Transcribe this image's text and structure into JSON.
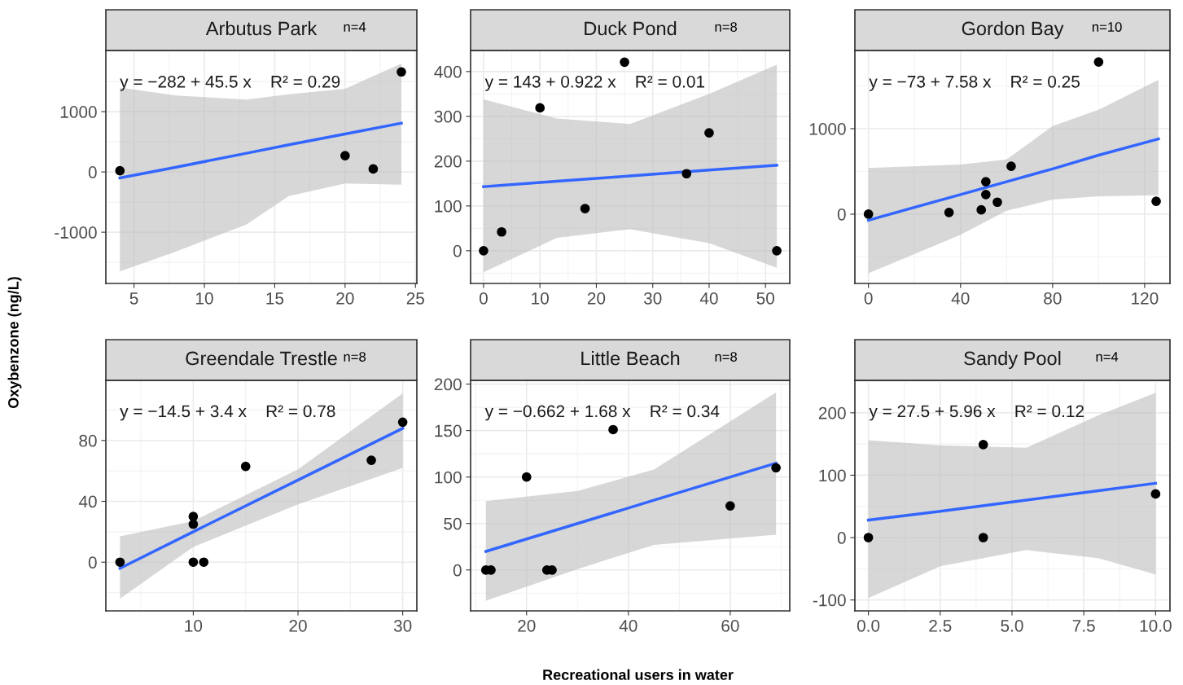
{
  "chart_data": [
    {
      "type": "scatter",
      "title": "Arbutus Park",
      "ylabel": "Oxybenzone (ng/L)",
      "annotations": [
        "n=4",
        "y = −282 + 45.5 x    R² = 0.29"
      ],
      "xlim": [
        3,
        25.1
      ],
      "ylim": [
        -1850,
        2015
      ],
      "xticks": [
        5,
        10,
        15,
        20,
        25
      ],
      "yticks": [
        -1000,
        0,
        1000
      ],
      "grid": true,
      "series": [
        {
          "type": "scatter",
          "marker": "circle",
          "color": "#000000",
          "x": [
            4,
            20,
            22,
            24
          ],
          "values": [
            20,
            270,
            50,
            1660
          ]
        },
        {
          "type": "line",
          "color": "#3366ff",
          "x": [
            4,
            8,
            13,
            16,
            20,
            24
          ],
          "values": [
            -100,
            80,
            310,
            450,
            630,
            810
          ],
          "lower": [
            -1650,
            -1320,
            -870,
            -400,
            -190,
            -210
          ],
          "upper": [
            1400,
            1270,
            1200,
            1290,
            1380,
            1800
          ]
        }
      ]
    },
    {
      "type": "scatter",
      "title": "Duck Pond",
      "annotations": [
        "n=8",
        "y = 143 + 0.922 x    R² = 0.01"
      ],
      "xlim": [
        -2.3,
        54.3
      ],
      "ylim": [
        -73,
        447
      ],
      "xticks": [
        0,
        10,
        20,
        30,
        40,
        50
      ],
      "yticks": [
        0,
        100,
        200,
        300,
        400
      ],
      "grid": true,
      "series": [
        {
          "type": "scatter",
          "marker": "circle",
          "color": "#000000",
          "x": [
            0,
            3.2,
            10,
            18,
            25,
            36,
            40,
            52
          ],
          "values": [
            0,
            42,
            319,
            94,
            421,
            172,
            263,
            0
          ]
        },
        {
          "type": "line",
          "color": "#3366ff",
          "x": [
            0,
            13,
            26,
            40,
            52
          ],
          "values": [
            143,
            155,
            167,
            180,
            191
          ],
          "lower": [
            -48,
            29,
            48,
            17,
            -38
          ],
          "upper": [
            338,
            295,
            283,
            350,
            415
          ]
        }
      ]
    },
    {
      "type": "scatter",
      "title": "Gordon Bay",
      "annotations": [
        "n=10",
        "y = −73 + 7.58 x    R² = 0.25"
      ],
      "xlim": [
        -5.9,
        131
      ],
      "ylim": [
        -810,
        1914
      ],
      "xticks": [
        0,
        40,
        80,
        120
      ],
      "yticks": [
        0,
        1000
      ],
      "grid": true,
      "series": [
        {
          "type": "scatter",
          "marker": "circle",
          "color": "#000000",
          "x": [
            0,
            35,
            49,
            51,
            51,
            56,
            62,
            100,
            125
          ],
          "values": [
            0,
            20,
            50,
            230,
            380,
            140,
            560,
            1780,
            150
          ]
        },
        {
          "type": "line",
          "color": "#3366ff",
          "x": [
            0,
            40,
            60,
            80,
            100,
            126
          ],
          "values": [
            -70,
            230,
            380,
            530,
            690,
            880
          ],
          "lower": [
            -690,
            -240,
            40,
            170,
            210,
            220
          ],
          "upper": [
            540,
            580,
            640,
            1030,
            1220,
            1570
          ]
        }
      ]
    },
    {
      "type": "scatter",
      "title": "Greendale Trestle",
      "annotations": [
        "n=8",
        "y = −14.5 + 3.4 x    R² = 0.78"
      ],
      "xlim": [
        1.65,
        31.35
      ],
      "ylim": [
        -32,
        119.5
      ],
      "xticks": [
        10,
        20,
        30
      ],
      "yticks": [
        0,
        40,
        80
      ],
      "grid": true,
      "series": [
        {
          "type": "scatter",
          "marker": "circle",
          "color": "#000000",
          "x": [
            3,
            10,
            10,
            10,
            11,
            15,
            27,
            30
          ],
          "values": [
            0,
            30,
            25,
            0,
            0,
            63,
            67,
            92
          ]
        },
        {
          "type": "line",
          "color": "#3366ff",
          "x": [
            3,
            10,
            20,
            30
          ],
          "values": [
            -4,
            20,
            54,
            88
          ],
          "lower": [
            -24,
            10,
            38,
            62
          ],
          "upper": [
            17,
            27,
            61,
            111
          ]
        }
      ]
    },
    {
      "type": "scatter",
      "title": "Little Beach",
      "xlabel": "Recreational users in water",
      "annotations": [
        "n=8",
        "y = −0.662 + 1.68 x    R² = 0.34"
      ],
      "xlim": [
        9,
        71.7
      ],
      "ylim": [
        -44,
        204
      ],
      "xticks": [
        20,
        40,
        60
      ],
      "yticks": [
        0,
        50,
        100,
        150,
        200
      ],
      "grid": true,
      "series": [
        {
          "type": "scatter",
          "marker": "circle",
          "color": "#000000",
          "x": [
            12,
            13,
            20,
            24,
            25,
            37,
            60,
            69
          ],
          "values": [
            0,
            0,
            100,
            0,
            0,
            151,
            69,
            110
          ]
        },
        {
          "type": "line",
          "color": "#3366ff",
          "x": [
            12,
            30,
            45,
            69
          ],
          "values": [
            20,
            50,
            75,
            115
          ],
          "lower": [
            -33,
            1,
            27,
            38
          ],
          "upper": [
            74,
            85,
            108,
            191
          ]
        }
      ]
    },
    {
      "type": "scatter",
      "title": "Sandy Pool",
      "annotations": [
        "n=4",
        "y = 27.5 + 5.96 x    R² = 0.12"
      ],
      "xlim": [
        -0.47,
        10.5
      ],
      "ylim": [
        -117.5,
        252
      ],
      "xticks": [
        {
          "value": 0,
          "label": "0.0"
        },
        2.5,
        {
          "value": 5,
          "label": "5.0"
        },
        7.5,
        {
          "value": 10,
          "label": "10.0"
        }
      ],
      "yticks": [
        -100,
        0,
        100,
        200
      ],
      "grid": true,
      "series": [
        {
          "type": "scatter",
          "marker": "circle",
          "color": "#000000",
          "x": [
            0,
            4,
            4,
            10
          ],
          "values": [
            0,
            149,
            0,
            70
          ]
        },
        {
          "type": "line",
          "color": "#3366ff",
          "x": [
            0,
            2.5,
            5.5,
            8,
            10
          ],
          "values": [
            28,
            42,
            60,
            75,
            87
          ],
          "lower": [
            -97,
            -46,
            -20,
            -33,
            -59
          ],
          "upper": [
            156,
            148,
            144,
            196,
            232
          ]
        }
      ]
    }
  ]
}
